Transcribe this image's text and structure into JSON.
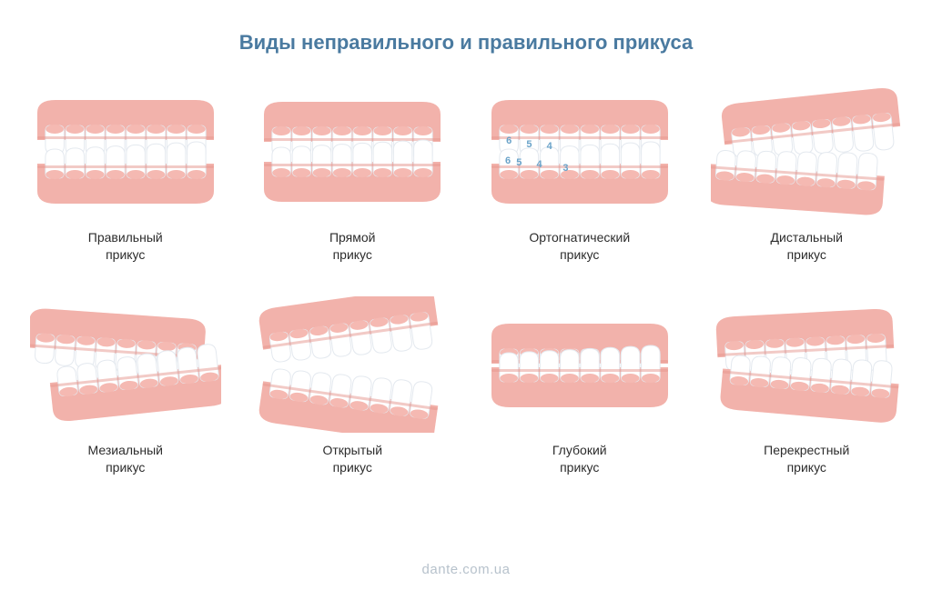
{
  "title": "Виды неправильного и правильного прикуса",
  "title_color": "#4a7aa0",
  "title_fontsize": 22,
  "bg": "#ffffff",
  "label_color": "#2c2c2c",
  "label_fontsize": 14,
  "watermark": "dante.com.ua",
  "watermark_color": "#b7c2cc",
  "watermark_fontsize": 15,
  "gum_color": "#f5b9b2",
  "gum_deep": "#eea79f",
  "gum_shadow": "#e6968d",
  "tooth_fill": "#ffffff",
  "tooth_stroke": "#e4e9ef",
  "number_color": "#6aa3c9",
  "number_fontsize": 11,
  "items": [
    {
      "line1": "Правильный",
      "line2": "прикус",
      "variant": "normal",
      "numbers": false
    },
    {
      "line1": "Прямой",
      "line2": "прикус",
      "variant": "edge",
      "numbers": false
    },
    {
      "line1": "Ортогнатический",
      "line2": "прикус",
      "variant": "normal",
      "numbers": true
    },
    {
      "line1": "Дистальный",
      "line2": "прикус",
      "variant": "distal",
      "numbers": false
    },
    {
      "line1": "Мезиальный",
      "line2": "прикус",
      "variant": "mesial",
      "numbers": false
    },
    {
      "line1": "Открытый",
      "line2": "прикус",
      "variant": "open",
      "numbers": false
    },
    {
      "line1": "Глубокий",
      "line2": "прикус",
      "variant": "deep",
      "numbers": false
    },
    {
      "line1": "Перекрестный",
      "line2": "прикус",
      "variant": "cross",
      "numbers": false
    }
  ],
  "tooth_numbers": [
    "6",
    "5",
    "4",
    "4",
    "5",
    "6",
    "3"
  ]
}
